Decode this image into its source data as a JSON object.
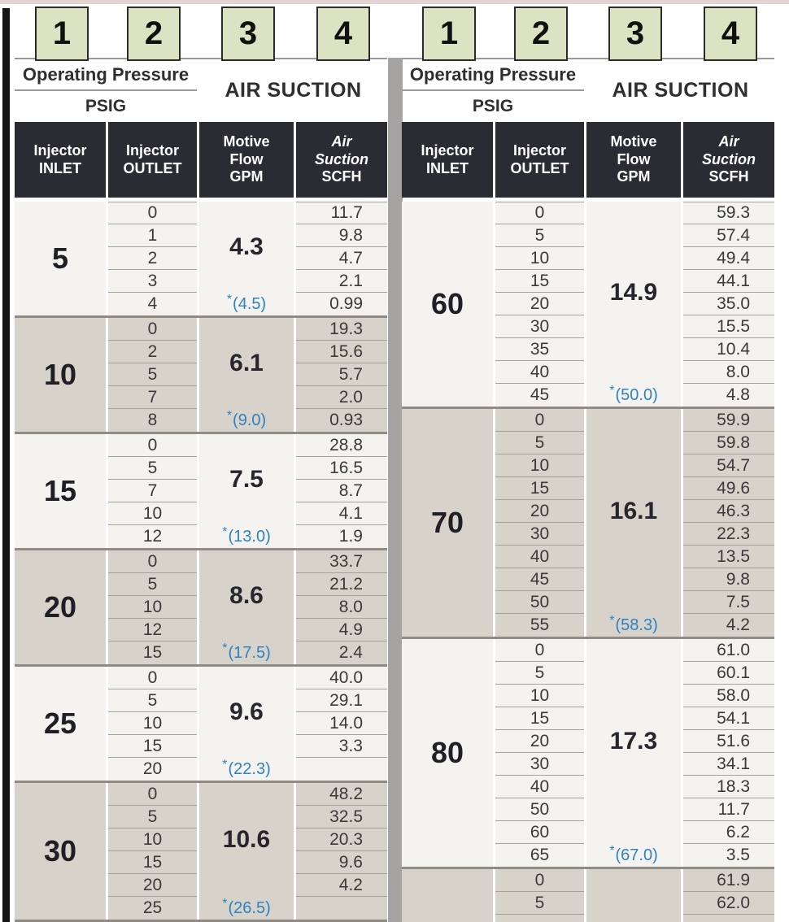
{
  "colors": {
    "accent_blue": "#2e82c2",
    "dark_header_bg": "#2b2b33",
    "group_light_bg": "#f5f3ef",
    "group_shaded_bg": "#d7d3ca",
    "green_box_bg": "#dce3c3",
    "row_line": "#a6a29a",
    "group_separator": "#8f8c86",
    "divider_bar": "#a5a4a2"
  },
  "legend_boxes": [
    "1",
    "2",
    "3",
    "4"
  ],
  "header": {
    "operating_pressure": "Operating Pressure",
    "psig": "PSIG",
    "air_suction": "AIR SUCTION",
    "columns": [
      {
        "lines": [
          "Injector",
          "INLET"
        ],
        "italic_lines": []
      },
      {
        "lines": [
          "Injector",
          "OUTLET"
        ],
        "italic_lines": []
      },
      {
        "lines": [
          "Motive",
          "Flow",
          "GPM"
        ],
        "italic_lines": []
      },
      {
        "lines": [
          "Air",
          "Suction",
          "SCFH"
        ],
        "italic_lines": [
          0,
          1
        ]
      }
    ]
  },
  "tables": [
    {
      "id": "left",
      "bottom_border": true,
      "groups": [
        {
          "inlet": "5",
          "motive": "4.3",
          "star": "*(4.5)",
          "shaded": false,
          "rows": [
            [
              "0",
              "11.7"
            ],
            [
              "1",
              "9.8"
            ],
            [
              "2",
              "4.7"
            ],
            [
              "3",
              "2.1"
            ],
            [
              "4",
              "0.99"
            ]
          ]
        },
        {
          "inlet": "10",
          "motive": "6.1",
          "star": "*(9.0)",
          "shaded": true,
          "rows": [
            [
              "0",
              "19.3"
            ],
            [
              "2",
              "15.6"
            ],
            [
              "5",
              "5.7"
            ],
            [
              "7",
              "2.0"
            ],
            [
              "8",
              "0.93"
            ]
          ]
        },
        {
          "inlet": "15",
          "motive": "7.5",
          "star": "*(13.0)",
          "shaded": false,
          "rows": [
            [
              "0",
              "28.8"
            ],
            [
              "5",
              "16.5"
            ],
            [
              "7",
              "8.7"
            ],
            [
              "10",
              "4.1"
            ],
            [
              "12",
              "1.9"
            ]
          ]
        },
        {
          "inlet": "20",
          "motive": "8.6",
          "star": "*(17.5)",
          "shaded": true,
          "rows": [
            [
              "0",
              "33.7"
            ],
            [
              "5",
              "21.2"
            ],
            [
              "10",
              "8.0"
            ],
            [
              "12",
              "4.9"
            ],
            [
              "15",
              "2.4"
            ]
          ]
        },
        {
          "inlet": "25",
          "motive": "9.6",
          "star": "*(22.3)",
          "shaded": false,
          "rows": [
            [
              "0",
              "40.0"
            ],
            [
              "5",
              "29.1"
            ],
            [
              "10",
              "14.0"
            ],
            [
              "15",
              "3.3"
            ],
            [
              "20",
              ""
            ]
          ]
        },
        {
          "inlet": "30",
          "motive": "10.6",
          "star": "*(26.5)",
          "shaded": true,
          "rows": [
            [
              "0",
              "48.2"
            ],
            [
              "5",
              "32.5"
            ],
            [
              "10",
              "20.3"
            ],
            [
              "15",
              "9.6"
            ],
            [
              "20",
              "4.2"
            ],
            [
              "25",
              ""
            ]
          ]
        }
      ]
    },
    {
      "id": "right",
      "bottom_border": false,
      "groups": [
        {
          "inlet": "60",
          "motive": "14.9",
          "star": "*(50.0)",
          "shaded": false,
          "rows": [
            [
              "0",
              "59.3"
            ],
            [
              "5",
              "57.4"
            ],
            [
              "10",
              "49.4"
            ],
            [
              "15",
              "44.1"
            ],
            [
              "20",
              "35.0"
            ],
            [
              "30",
              "15.5"
            ],
            [
              "35",
              "10.4"
            ],
            [
              "40",
              "8.0"
            ],
            [
              "45",
              "4.8"
            ]
          ]
        },
        {
          "inlet": "70",
          "motive": "16.1",
          "star": "*(58.3)",
          "shaded": true,
          "rows": [
            [
              "0",
              "59.9"
            ],
            [
              "5",
              "59.8"
            ],
            [
              "10",
              "54.7"
            ],
            [
              "15",
              "49.6"
            ],
            [
              "20",
              "46.3"
            ],
            [
              "30",
              "22.3"
            ],
            [
              "40",
              "13.5"
            ],
            [
              "45",
              "9.8"
            ],
            [
              "50",
              "7.5"
            ],
            [
              "55",
              "4.2"
            ]
          ]
        },
        {
          "inlet": "80",
          "motive": "17.3",
          "star": "*(67.0)",
          "shaded": false,
          "rows": [
            [
              "0",
              "61.0"
            ],
            [
              "5",
              "60.1"
            ],
            [
              "10",
              "58.0"
            ],
            [
              "15",
              "54.1"
            ],
            [
              "20",
              "51.6"
            ],
            [
              "30",
              "34.1"
            ],
            [
              "40",
              "18.3"
            ],
            [
              "50",
              "11.7"
            ],
            [
              "60",
              "6.2"
            ],
            [
              "65",
              "3.5"
            ]
          ]
        },
        {
          "inlet": "",
          "motive": "",
          "star": "",
          "shaded": true,
          "cut": true,
          "rows": [
            [
              "0",
              "61.9"
            ],
            [
              "5",
              "62.0"
            ]
          ]
        }
      ]
    }
  ]
}
